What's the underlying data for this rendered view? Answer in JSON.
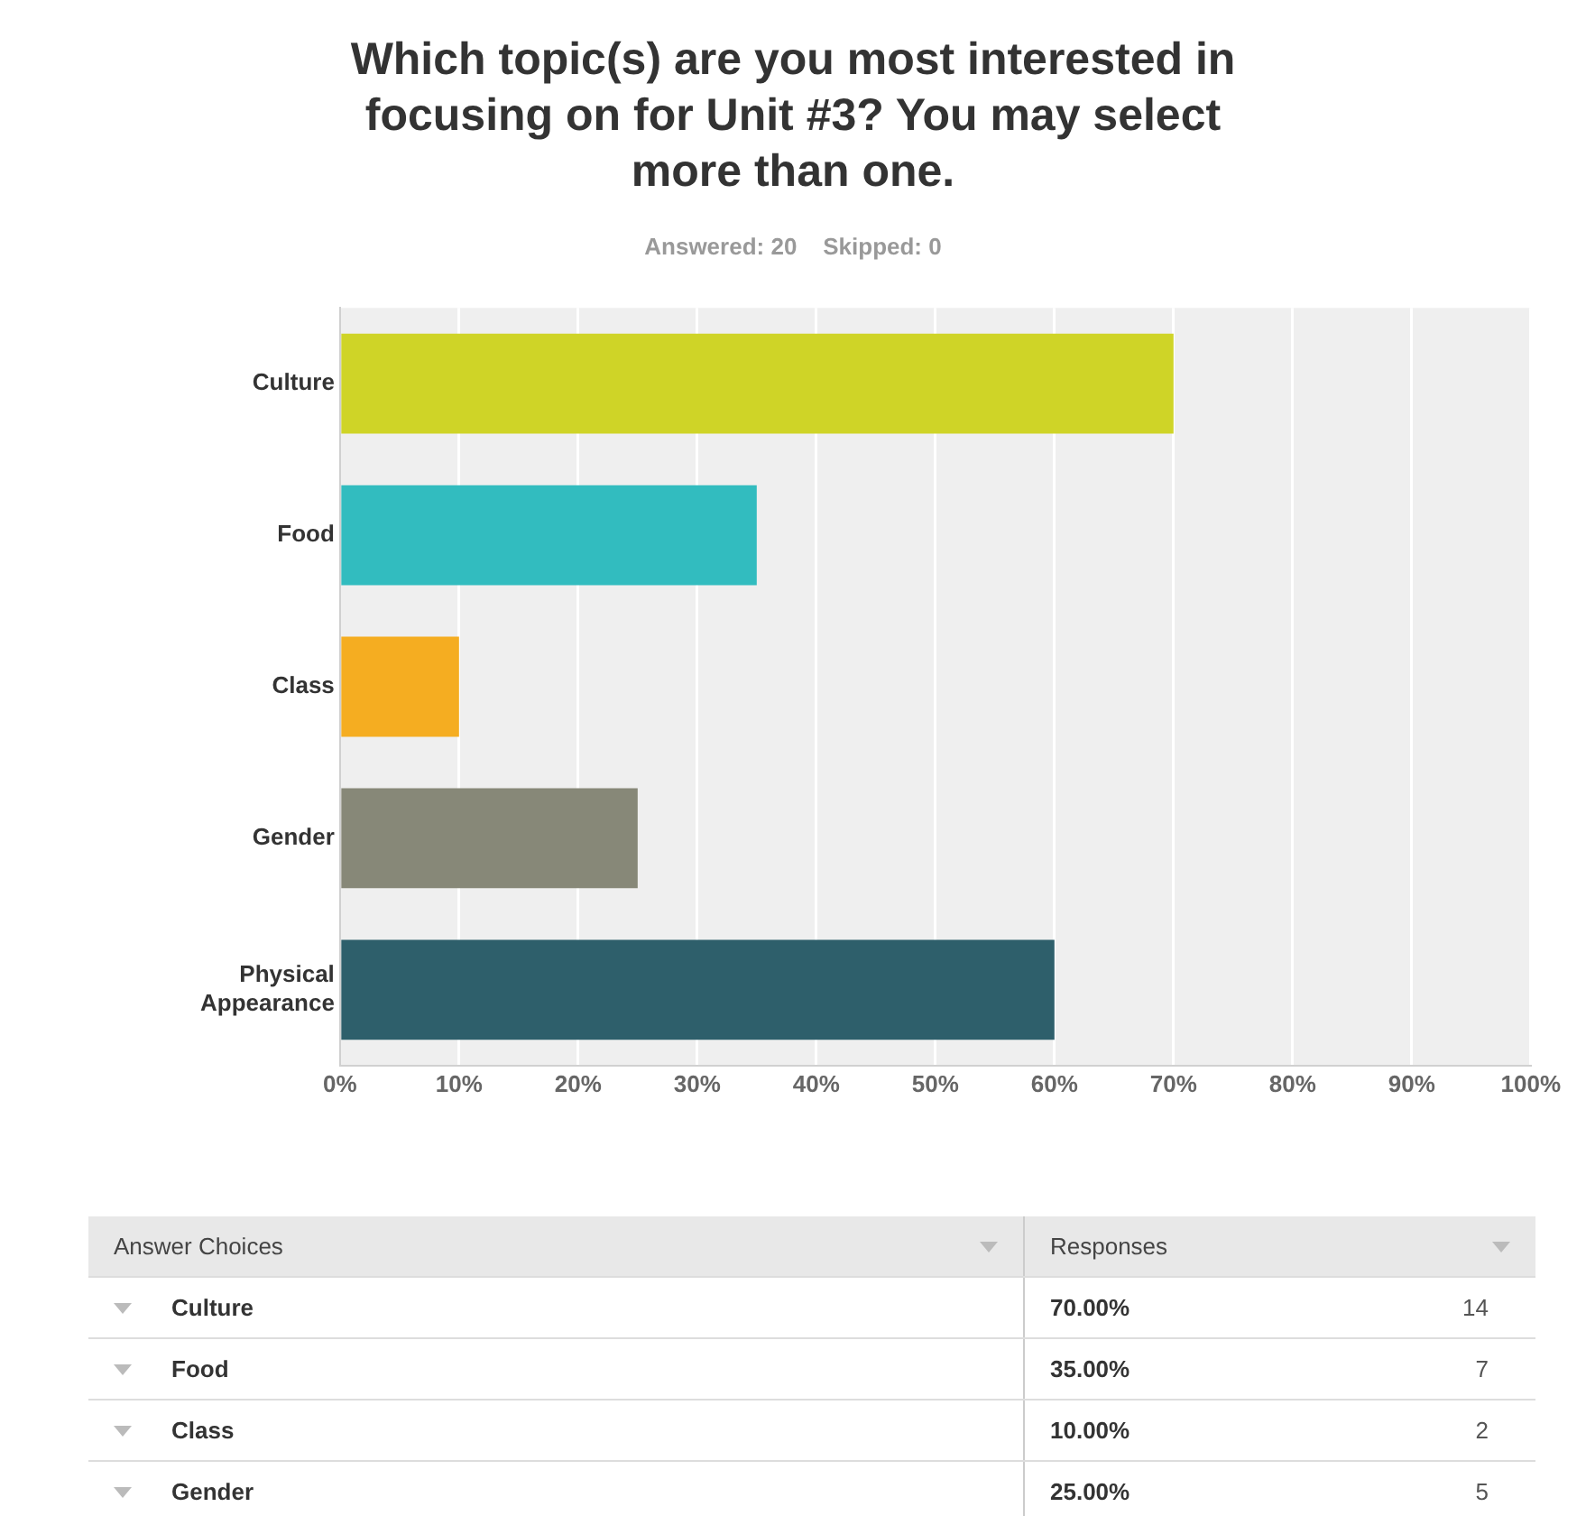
{
  "chart_data": {
    "type": "bar",
    "orientation": "horizontal",
    "title": "Which topic(s) are you most interested in focusing on for Unit #3? You may select more than one.",
    "subtitle": "Answered: 20    Skipped: 0",
    "categories": [
      "Culture",
      "Food",
      "Class",
      "Gender",
      "Physical Appearance"
    ],
    "values": [
      70,
      35,
      10,
      25,
      60
    ],
    "colors": [
      "#cfd427",
      "#32bcbf",
      "#f5ad21",
      "#878878",
      "#2e5f6b"
    ],
    "xlim": [
      0,
      100
    ],
    "xticks": [
      {
        "value": 0,
        "label": "0%"
      },
      {
        "value": 10,
        "label": "10%"
      },
      {
        "value": 20,
        "label": "20%"
      },
      {
        "value": 30,
        "label": "30%"
      },
      {
        "value": 40,
        "label": "40%"
      },
      {
        "value": 50,
        "label": "50%"
      },
      {
        "value": 60,
        "label": "60%"
      },
      {
        "value": 70,
        "label": "70%"
      },
      {
        "value": 80,
        "label": "80%"
      },
      {
        "value": 90,
        "label": "90%"
      },
      {
        "value": 100,
        "label": "100%"
      }
    ],
    "grid": "x",
    "legend": false,
    "annotations": [
      "Answer Choices",
      "Responses",
      "70.00%",
      "14",
      "35.00%",
      "7",
      "10.00%",
      "2",
      "25.00%",
      "5"
    ]
  }
}
